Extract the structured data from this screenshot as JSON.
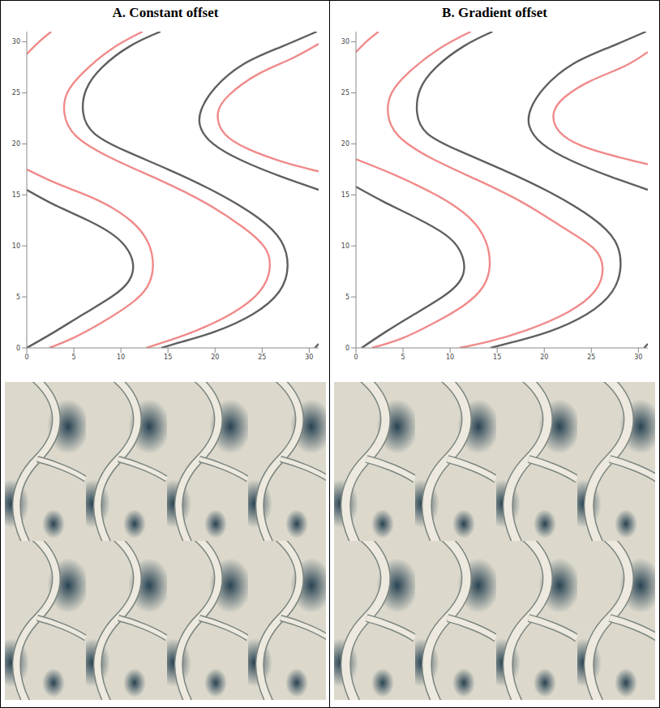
{
  "chart_data": [
    {
      "type": "line",
      "title": "A. Constant offset",
      "xlim": [
        0,
        31
      ],
      "ylim": [
        0,
        31
      ],
      "xticks": [
        0,
        5,
        10,
        15,
        20,
        25,
        30
      ],
      "yticks": [
        0,
        5,
        10,
        15,
        20,
        25,
        30
      ],
      "grid": false,
      "series": [
        {
          "color": "#f08a8a",
          "x": [
            0,
            1.3,
            2.6
          ],
          "values": [
            28.8,
            30,
            31
          ]
        },
        {
          "color": "#5f5f5f",
          "x": [
            14.2,
            11,
            8,
            6.3,
            6,
            7.2,
            10.5,
            15,
            20,
            24.5,
            27,
            27.7,
            26.8,
            24,
            20,
            16.5,
            14.3
          ],
          "values": [
            31,
            29.6,
            27.5,
            25.3,
            23,
            21,
            19.3,
            17.5,
            15.3,
            12.8,
            10.5,
            8,
            5.5,
            3.3,
            1.6,
            0.6,
            0
          ]
        },
        {
          "color": "#f08a8a",
          "x": [
            12.3,
            9,
            6,
            4.3,
            4,
            5.2,
            9,
            14,
            19,
            23,
            25.3,
            25.8,
            24.8,
            22,
            18,
            14.7,
            12.7
          ],
          "values": [
            31,
            29.3,
            27,
            25,
            23,
            20.8,
            18.6,
            16.5,
            14.2,
            11.8,
            9.8,
            7.8,
            5.6,
            3.5,
            1.7,
            0.6,
            0
          ]
        },
        {
          "color": "#5f5f5f",
          "x": [
            0,
            3,
            6.5,
            9.3,
            10.8,
            11.3,
            10.8,
            9,
            6,
            3,
            0
          ],
          "values": [
            15.5,
            14,
            12.5,
            11,
            9.5,
            8,
            6.5,
            5,
            3.3,
            1.6,
            0
          ]
        },
        {
          "color": "#f08a8a",
          "x": [
            0,
            3.5,
            7.5,
            11,
            12.9,
            13.4,
            12.8,
            11,
            8,
            5,
            2.4
          ],
          "values": [
            17.5,
            16,
            14.5,
            12.5,
            10.3,
            8,
            6,
            4.3,
            2.5,
            1,
            0
          ]
        },
        {
          "color": "#5f5f5f",
          "x": [
            30.8,
            27,
            23,
            20,
            18.6,
            18.4,
            19.8,
            23,
            27,
            31
          ],
          "values": [
            31,
            29.5,
            27.8,
            25.5,
            23.5,
            21.8,
            20,
            18.3,
            16.8,
            15.5
          ]
        },
        {
          "color": "#f08a8a",
          "x": [
            31,
            28,
            24.5,
            21.5,
            20.3,
            21,
            23.5,
            27,
            31
          ],
          "values": [
            29.8,
            28.3,
            26.8,
            24.8,
            23,
            21,
            19.5,
            18.3,
            17.3
          ]
        },
        {
          "color": "#5f5f5f",
          "x": [
            30.6,
            31
          ],
          "values": [
            0,
            0.4
          ]
        }
      ]
    },
    {
      "type": "line",
      "title": "B. Gradient offset",
      "xlim": [
        0,
        31
      ],
      "ylim": [
        0,
        31
      ],
      "xticks": [
        0,
        5,
        10,
        15,
        20,
        25,
        30
      ],
      "yticks": [
        0,
        5,
        10,
        15,
        20,
        25,
        30
      ],
      "grid": false,
      "series": [
        {
          "color": "#f08a8a",
          "x": [
            0,
            1.2,
            2.4
          ],
          "values": [
            29,
            30.1,
            31
          ]
        },
        {
          "color": "#5f5f5f",
          "x": [
            14.5,
            11.5,
            8.5,
            6.8,
            6.5,
            7.6,
            11,
            15.5,
            20.5,
            25,
            27.5,
            28.1,
            27.2,
            24.5,
            20.5,
            16.8,
            14.3
          ],
          "values": [
            31,
            29.6,
            27.5,
            25.3,
            23,
            21,
            19.3,
            17.5,
            15.3,
            12.8,
            10.5,
            8,
            5.5,
            3.3,
            1.6,
            0.6,
            0
          ]
        },
        {
          "color": "#f08a8a",
          "x": [
            12.2,
            8.8,
            5.6,
            3.8,
            3.4,
            4.5,
            8,
            12.8,
            17.8,
            22,
            25.2,
            26.2,
            25.4,
            22.5,
            18,
            14,
            11
          ],
          "values": [
            31,
            29.3,
            27,
            25,
            23,
            20.8,
            18.6,
            16.5,
            14.2,
            11.8,
            9.8,
            7.8,
            5.6,
            3.5,
            1.7,
            0.6,
            0
          ]
        },
        {
          "color": "#5f5f5f",
          "x": [
            0,
            3,
            6.5,
            9.5,
            11,
            11.5,
            11,
            9.2,
            6.2,
            3.2,
            0.6
          ],
          "values": [
            15.8,
            14.3,
            12.7,
            11.1,
            9.6,
            8,
            6.5,
            5,
            3.3,
            1.6,
            0
          ]
        },
        {
          "color": "#f08a8a",
          "x": [
            0,
            4,
            8.5,
            12,
            13.8,
            14.2,
            13.5,
            11.5,
            8.2,
            4.8,
            1.7
          ],
          "values": [
            18.5,
            17,
            15,
            12.8,
            10.4,
            8,
            6,
            4.2,
            2.4,
            0.9,
            0
          ]
        },
        {
          "color": "#5f5f5f",
          "x": [
            30.8,
            27,
            23,
            20,
            18.6,
            18.4,
            19.8,
            23,
            27,
            31
          ],
          "values": [
            31,
            29.5,
            27.8,
            25.5,
            23.5,
            21.8,
            20,
            18.3,
            16.8,
            15.5
          ]
        },
        {
          "color": "#f08a8a",
          "x": [
            31,
            28.5,
            25,
            22.2,
            21,
            21.6,
            24,
            27.5,
            31
          ],
          "values": [
            29,
            27.6,
            26.2,
            24.6,
            23,
            21.2,
            19.8,
            18.8,
            18
          ]
        },
        {
          "color": "#5f5f5f",
          "x": [
            30.6,
            31
          ],
          "values": [
            0,
            0.4
          ]
        }
      ]
    }
  ]
}
